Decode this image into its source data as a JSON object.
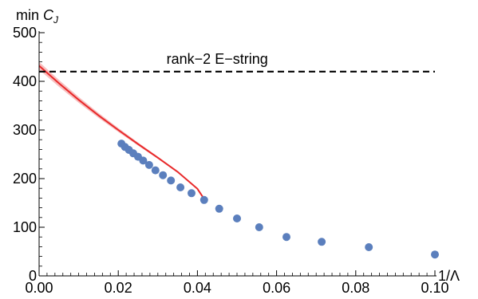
{
  "chart_data": {
    "type": "scatter",
    "title": "",
    "xlabel": "1/Λ",
    "ylabel": "min C_J",
    "ylabel_main": "min ",
    "ylabel_symbol": "C",
    "ylabel_sub": "J",
    "xlim": [
      0.0,
      0.1
    ],
    "ylim": [
      0,
      500
    ],
    "x_ticks": [
      "0.00",
      "0.02",
      "0.04",
      "0.06",
      "0.08",
      "0.10"
    ],
    "y_ticks": [
      "0",
      "100",
      "200",
      "300",
      "400",
      "500"
    ],
    "x_tick_values": [
      0.0,
      0.02,
      0.04,
      0.06,
      0.08,
      0.1
    ],
    "y_tick_values": [
      0,
      100,
      200,
      300,
      400,
      500
    ],
    "grid": false,
    "colors": {
      "points": "#5b7fbd",
      "fit": "#e8292a",
      "fit_band": "#f08a8a",
      "reference": "#000000"
    },
    "series": [
      {
        "kind": "points",
        "x": [
          0.0208,
          0.0217,
          0.0227,
          0.0238,
          0.025,
          0.0263,
          0.0278,
          0.0294,
          0.0313,
          0.0333,
          0.0357,
          0.0385,
          0.0417,
          0.0455,
          0.05,
          0.0556,
          0.0625,
          0.0714,
          0.0833,
          0.1
        ],
        "y": [
          272,
          265,
          259,
          252,
          245,
          237,
          228,
          217,
          207,
          196,
          182,
          170,
          156,
          138,
          118,
          100,
          80,
          70,
          59,
          44
        ]
      },
      {
        "kind": "fit",
        "x": [
          0.0,
          0.005,
          0.01,
          0.015,
          0.02,
          0.025,
          0.03,
          0.035,
          0.04,
          0.0417
        ],
        "y": [
          432,
          396,
          362,
          330,
          300,
          271,
          243,
          214,
          179,
          158
        ],
        "band": 8
      },
      {
        "kind": "reference",
        "y": 420,
        "x_range": [
          0.0,
          0.1
        ]
      }
    ],
    "annotations": [
      {
        "text": "rank−2 E−string",
        "x": 0.045,
        "y": 420
      }
    ]
  }
}
